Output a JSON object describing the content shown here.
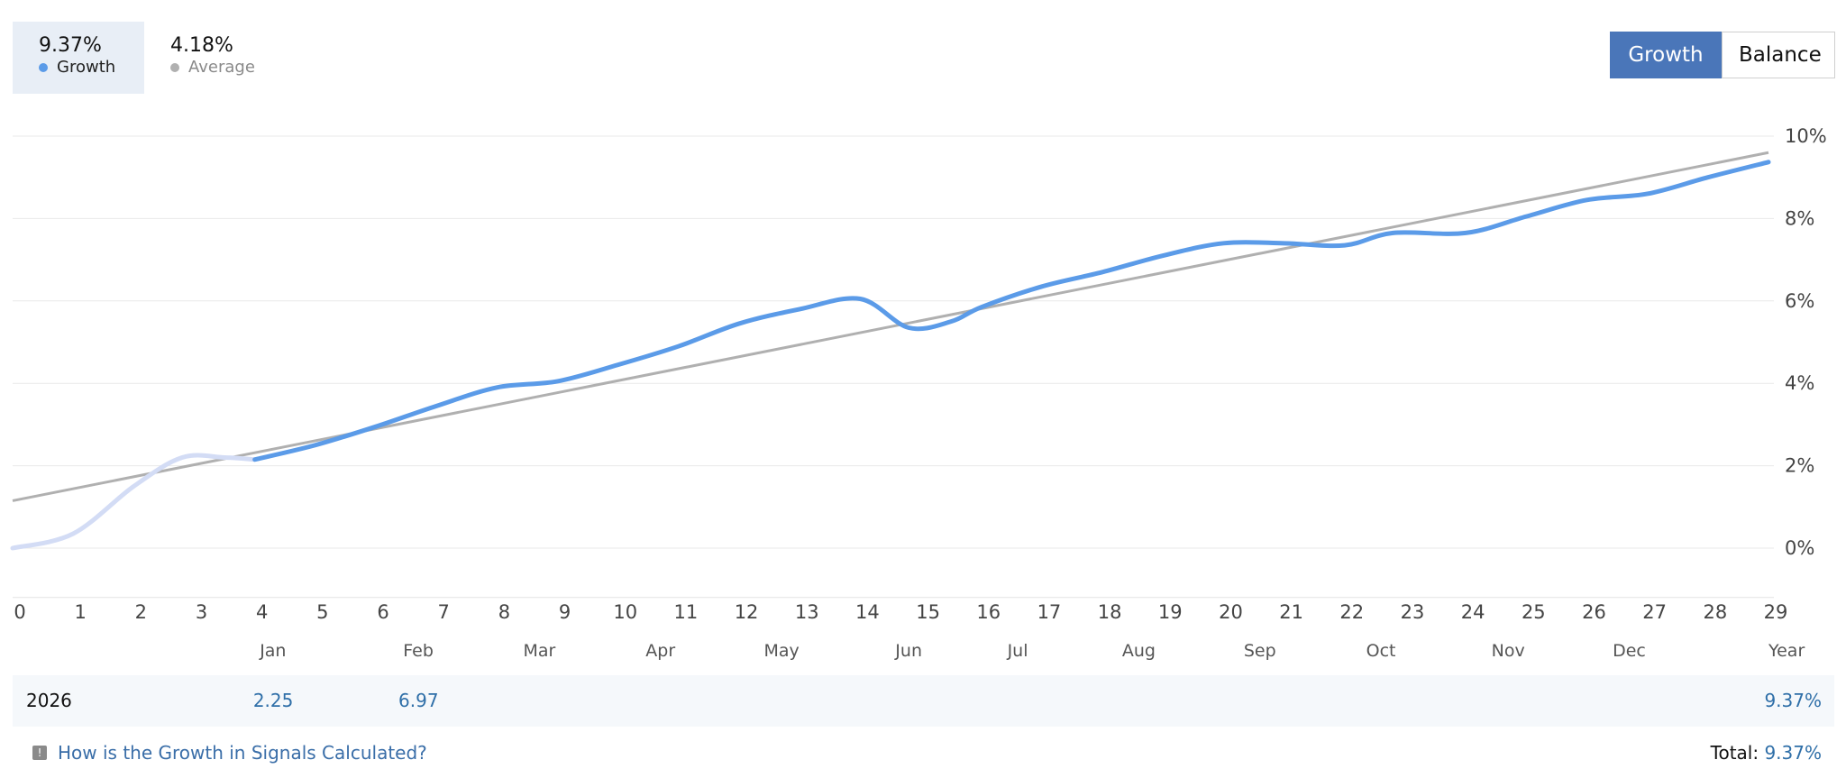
{
  "stats": {
    "growth": {
      "value": "9.37%",
      "label": "Growth",
      "color": "#5b9be8"
    },
    "average": {
      "value": "4.18%",
      "label": "Average",
      "color": "#b0b0b0"
    }
  },
  "toggle": {
    "growth_label": "Growth",
    "balance_label": "Balance",
    "active": "growth"
  },
  "chart_data": {
    "type": "line",
    "x_ticks": [
      "0",
      "1",
      "2",
      "3",
      "4",
      "5",
      "6",
      "7",
      "8",
      "9",
      "10",
      "11",
      "12",
      "13",
      "14",
      "15",
      "16",
      "17",
      "18",
      "19",
      "20",
      "21",
      "22",
      "23",
      "24",
      "25",
      "26",
      "27",
      "28",
      "29"
    ],
    "y_ticks": [
      "0%",
      "2%",
      "4%",
      "6%",
      "8%",
      "10%"
    ],
    "ylim": [
      -1,
      10.5
    ],
    "xlim": [
      0,
      29
    ],
    "month_labels": [
      {
        "label": "Jan",
        "x": 4.3
      },
      {
        "label": "Feb",
        "x": 6.7
      },
      {
        "label": "Mar",
        "x": 8.7
      },
      {
        "label": "Apr",
        "x": 10.7
      },
      {
        "label": "May",
        "x": 12.7
      },
      {
        "label": "Jun",
        "x": 14.8
      },
      {
        "label": "Jul",
        "x": 16.6
      },
      {
        "label": "Aug",
        "x": 18.6
      },
      {
        "label": "Sep",
        "x": 20.6
      },
      {
        "label": "Oct",
        "x": 22.6
      },
      {
        "label": "Nov",
        "x": 24.7
      },
      {
        "label": "Dec",
        "x": 26.7
      },
      {
        "label": "Year",
        "x": 29.3
      }
    ],
    "series": [
      {
        "name": "Growth",
        "color": "#5b9be8",
        "pre_color": "#d3dcf5",
        "pre_end_index": 4,
        "points": [
          [
            0,
            0
          ],
          [
            1,
            0.35
          ],
          [
            2,
            1.5
          ],
          [
            2.8,
            2.2
          ],
          [
            3.5,
            2.2
          ],
          [
            4,
            2.15
          ],
          [
            5,
            2.5
          ],
          [
            6,
            2.95
          ],
          [
            7,
            3.45
          ],
          [
            8,
            3.9
          ],
          [
            9,
            4.05
          ],
          [
            10,
            4.45
          ],
          [
            11,
            4.9
          ],
          [
            12,
            5.45
          ],
          [
            13,
            5.8
          ],
          [
            14,
            6.05
          ],
          [
            14.8,
            5.35
          ],
          [
            15.5,
            5.5
          ],
          [
            16,
            5.85
          ],
          [
            17,
            6.35
          ],
          [
            18,
            6.7
          ],
          [
            19,
            7.1
          ],
          [
            20,
            7.4
          ],
          [
            21,
            7.4
          ],
          [
            22,
            7.35
          ],
          [
            22.8,
            7.65
          ],
          [
            24,
            7.65
          ],
          [
            25,
            8.05
          ],
          [
            26,
            8.45
          ],
          [
            27,
            8.6
          ],
          [
            28,
            9.0
          ],
          [
            29,
            9.37
          ]
        ]
      },
      {
        "name": "Average",
        "color": "#b0b0b0",
        "points": [
          [
            0,
            1.15
          ],
          [
            29,
            9.6
          ]
        ]
      }
    ]
  },
  "year_row": {
    "year": "2026",
    "values": [
      {
        "month": "Jan",
        "value": "2.25"
      },
      {
        "month": "Feb",
        "value": "6.97"
      }
    ],
    "year_total": "9.37%"
  },
  "footer": {
    "help_link": "How is the Growth in Signals Calculated?",
    "info_icon": "info-icon",
    "total_label": "Total:",
    "total_value": "9.37%"
  }
}
